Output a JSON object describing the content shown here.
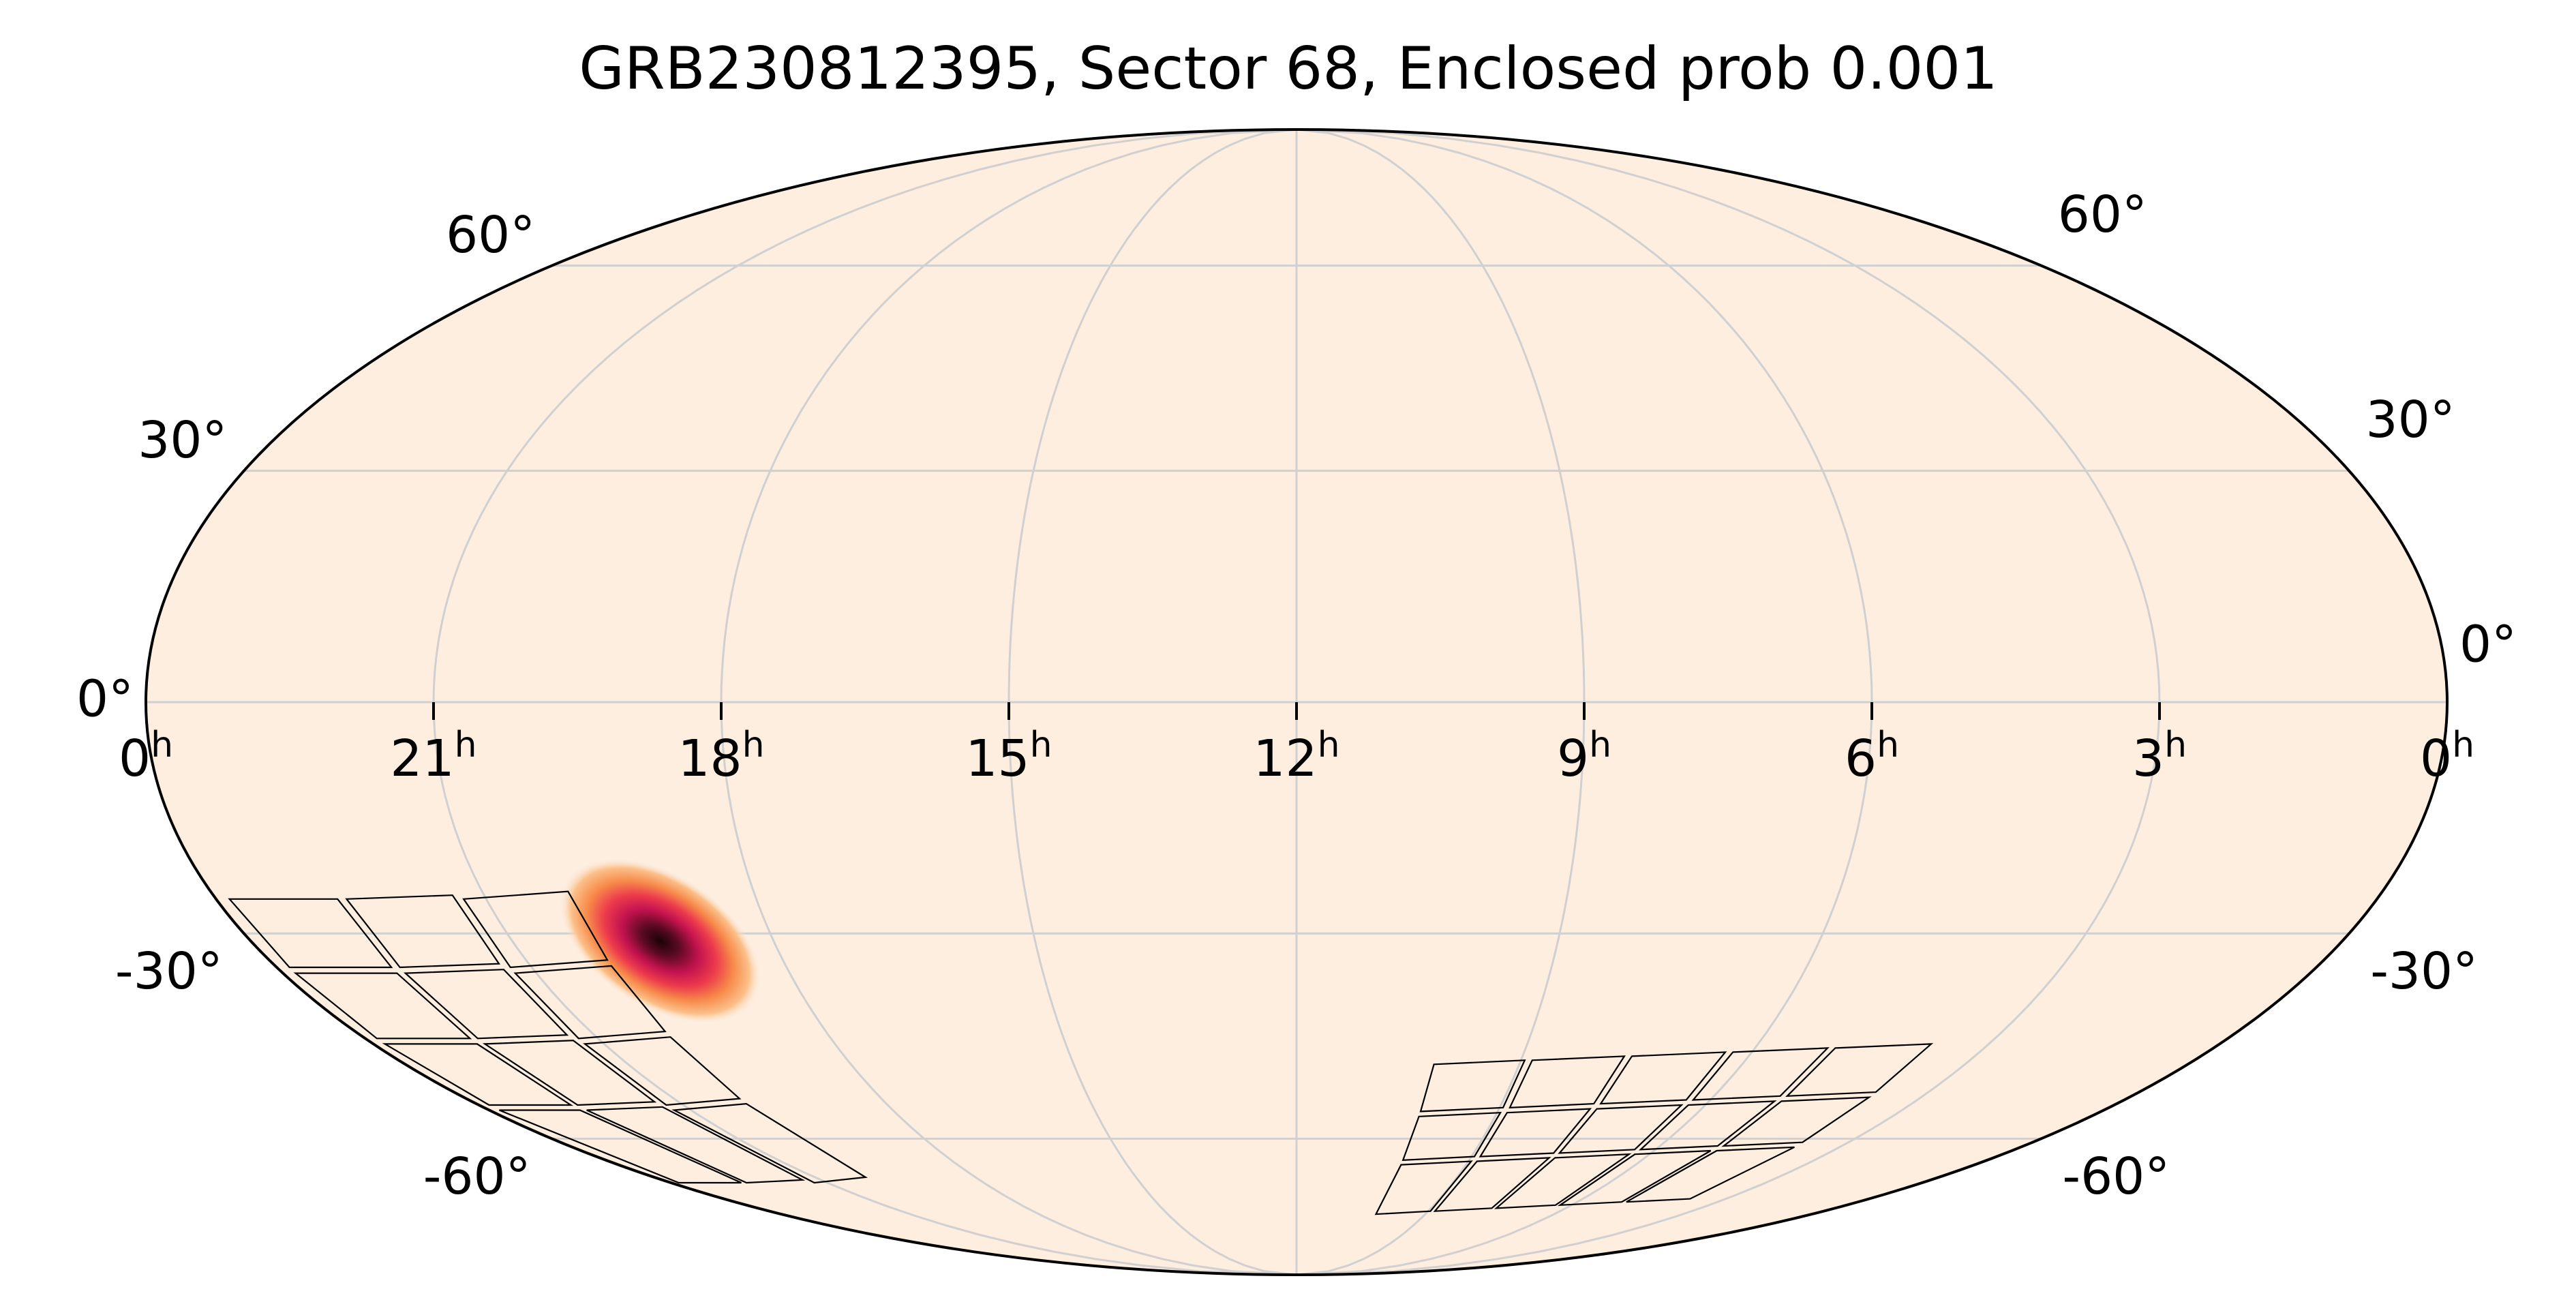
{
  "chart_data": {
    "type": "heatmap",
    "projection": "mollweide",
    "title": "GRB230812395, Sector 68, Enclosed prob 0.001",
    "xlabel": "",
    "ylabel": "",
    "grid": true,
    "ra_tick_labels": [
      {
        "hours": 24,
        "label": "0",
        "unit": "h"
      },
      {
        "hours": 21,
        "label": "21",
        "unit": "h"
      },
      {
        "hours": 18,
        "label": "18",
        "unit": "h"
      },
      {
        "hours": 15,
        "label": "15",
        "unit": "h"
      },
      {
        "hours": 12,
        "label": "12",
        "unit": "h"
      },
      {
        "hours": 9,
        "label": "9",
        "unit": "h"
      },
      {
        "hours": 6,
        "label": "6",
        "unit": "h"
      },
      {
        "hours": 3,
        "label": "3",
        "unit": "h"
      },
      {
        "hours": 0,
        "label": "0",
        "unit": "h"
      }
    ],
    "dec_tick_labels": [
      {
        "dec": 60,
        "label": "60°"
      },
      {
        "dec": 30,
        "label": "30°"
      },
      {
        "dec": 0,
        "label": "0°"
      },
      {
        "dec": -30,
        "label": "-30°"
      },
      {
        "dec": -60,
        "label": "-60°"
      }
    ],
    "probability_peak": {
      "ra_hours": 19.3,
      "dec": -31
    },
    "colormap": [
      "#fdeee0",
      "#fbbf86",
      "#f7844a",
      "#e8274f",
      "#b0124a",
      "#2a0510"
    ],
    "background_color": "#fdeee0",
    "grid_color": "#d0d0d0"
  }
}
